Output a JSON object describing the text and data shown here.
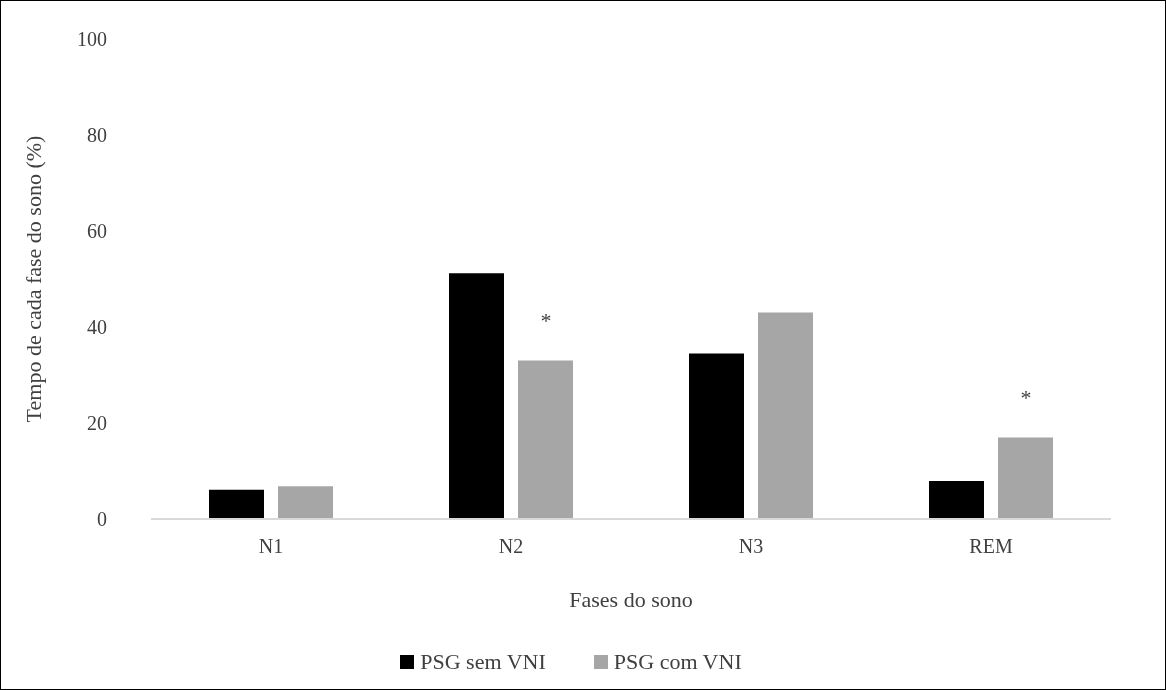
{
  "chart_data": {
    "type": "bar",
    "categories": [
      "N1",
      "N2",
      "N3",
      "REM"
    ],
    "series": [
      {
        "name": "PSG sem VNI",
        "color": "#000000",
        "values": [
          6.1,
          51.2,
          34.5,
          7.9
        ]
      },
      {
        "name": "PSG com VNI",
        "color": "#a6a6a6",
        "values": [
          6.8,
          33.0,
          43.0,
          17.0
        ]
      }
    ],
    "xlabel": "Fases do sono",
    "ylabel": "Tempo de cada fase do sono (%)",
    "ylim": [
      0,
      100
    ],
    "yticks": [
      0,
      20,
      40,
      60,
      80,
      100
    ],
    "annotations": [
      "*",
      "*"
    ],
    "grid": false,
    "legend": "bottom"
  }
}
